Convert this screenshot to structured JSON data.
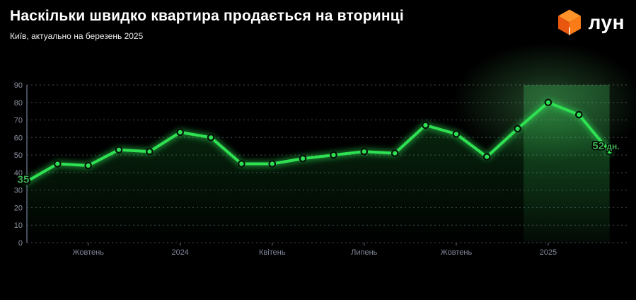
{
  "logo": {
    "text": "лун",
    "cube_top": "#FF9228",
    "cube_left": "#E9570F",
    "cube_right": "#FA7B17"
  },
  "chart_data": {
    "type": "line",
    "title": "Наскільки швидко квартира продається на вторинці",
    "subtitle": "Київ, актуально на березень 2025",
    "ylabel": "",
    "xlabel": "",
    "ylim": [
      0,
      90
    ],
    "y_ticks": [
      0,
      10,
      20,
      30,
      40,
      50,
      60,
      70,
      80,
      90
    ],
    "values": [
      35,
      45,
      44,
      53,
      52,
      63,
      60,
      45,
      45,
      48,
      50,
      52,
      51,
      67,
      62,
      49,
      65,
      80,
      73,
      52
    ],
    "x_tick_labels": [
      {
        "index": 2,
        "label": "Жовтень"
      },
      {
        "index": 5,
        "label": "2024"
      },
      {
        "index": 8,
        "label": "Квітень"
      },
      {
        "index": 11,
        "label": "Липень"
      },
      {
        "index": 14,
        "label": "Жовтень"
      },
      {
        "index": 17,
        "label": "2025"
      }
    ],
    "annotations": {
      "first_point": "35",
      "last_point_value": "52",
      "last_point_unit": " дн."
    },
    "highlight_band": {
      "from_x_index": 16.2,
      "to_x_index": 19
    },
    "grid": true,
    "legend": "none",
    "colors": {
      "background": "#000000",
      "line": "#2EE052",
      "marker_stroke": "#06130A",
      "annotation_label": "#3FAE52",
      "grid": "#9AA1B4",
      "axis": "#454C5C",
      "tick_text": "#8B91A1",
      "highlight_band": "#3CC45C",
      "logo_cube": "#F97316"
    }
  }
}
